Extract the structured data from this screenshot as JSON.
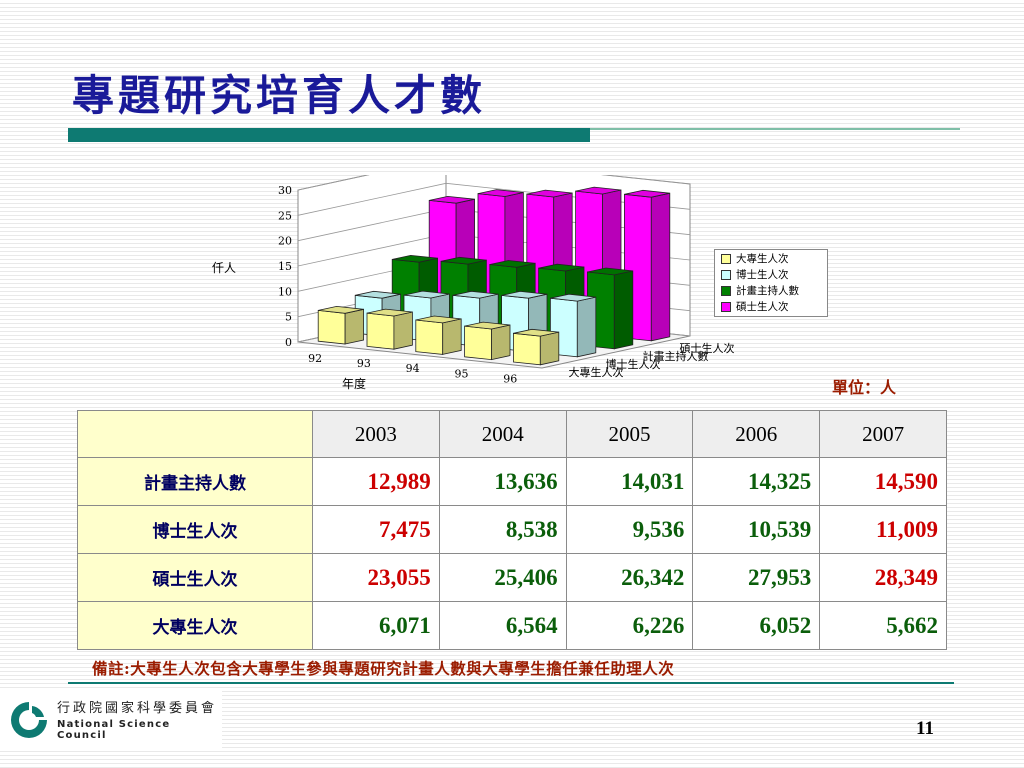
{
  "slide": {
    "title": "專題研究培育人才數",
    "unit": "單位：人",
    "note": "備註:大專生人次包含大專學生參與專題研究計畫人數與大專學生擔任兼任助理人次",
    "page_number": "11"
  },
  "logo": {
    "name_cn": "行政院國家科學委員會",
    "name_en": "National Science Council"
  },
  "chart_data": {
    "type": "bar",
    "subtype": "3d-clustered-column",
    "categories": [
      "92",
      "93",
      "94",
      "95",
      "96"
    ],
    "xlabel": "年度",
    "ylabel": "仟人",
    "ylim": [
      0,
      30
    ],
    "yticks": [
      0,
      5,
      10,
      15,
      20,
      25,
      30
    ],
    "grid": true,
    "legend_position": "right",
    "series": [
      {
        "name": "大專生人次",
        "color": "#ffff99",
        "values": [
          6.071,
          6.564,
          6.226,
          6.052,
          5.662
        ]
      },
      {
        "name": "博士生人次",
        "color": "#ccffff",
        "values": [
          7.475,
          8.538,
          9.536,
          10.539,
          11.009
        ]
      },
      {
        "name": "計畫主持人數",
        "color": "#008000",
        "values": [
          12.989,
          13.636,
          14.031,
          14.325,
          14.59
        ]
      },
      {
        "name": "碩士生人次",
        "color": "#ff00ff",
        "values": [
          23.055,
          25.406,
          26.342,
          27.953,
          28.349
        ]
      }
    ],
    "depth_axis_labels": [
      "碩士生人次",
      "計畫主持人數",
      "博士生人次",
      "大專生人次"
    ]
  },
  "table": {
    "headers": [
      "2003",
      "2004",
      "2005",
      "2006",
      "2007"
    ],
    "rows": [
      {
        "label": "計畫主持人數",
        "values": [
          "12,989",
          "13,636",
          "14,031",
          "14,325",
          "14,590"
        ]
      },
      {
        "label": "博士生人次",
        "values": [
          "7,475",
          "8,538",
          "9,536",
          "10,539",
          "11,009"
        ]
      },
      {
        "label": "碩士生人次",
        "values": [
          "23,055",
          "25,406",
          "26,342",
          "27,953",
          "28,349"
        ]
      },
      {
        "label": "大專生人次",
        "values": [
          "6,071",
          "6,564",
          "6,226",
          "6,052",
          "5,662"
        ]
      }
    ],
    "highlight_color": "#cc0000",
    "normal_color": "#0b5e0b"
  }
}
